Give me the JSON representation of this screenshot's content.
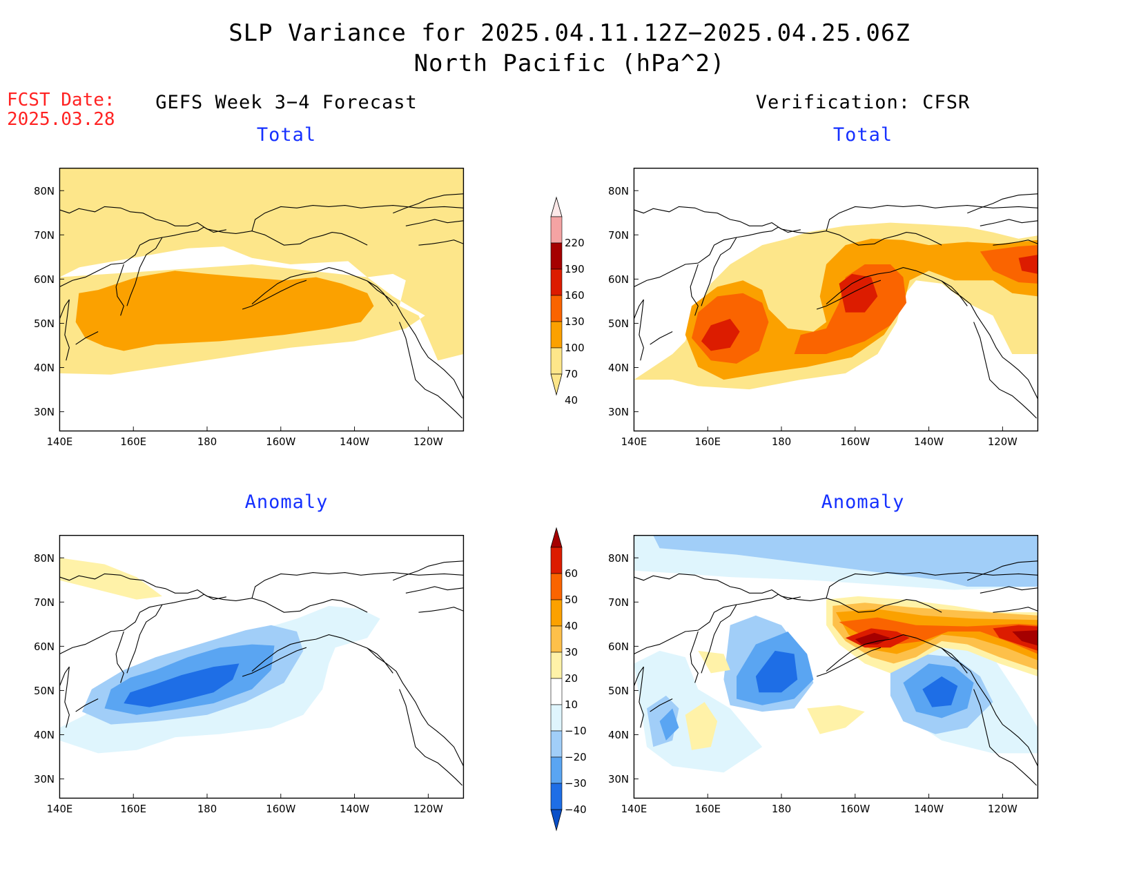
{
  "figure": {
    "title_line1": "SLP Variance for 2025.04.11.12Z−2025.04.25.06Z",
    "title_line2": "North Pacific (hPa^2)",
    "fcst_line1": "FCST Date:",
    "fcst_line2": "2025.03.28",
    "left_column_title": "GEFS Week 3−4 Forecast",
    "right_column_title": "Verification: CFSR"
  },
  "panels": {
    "top_left_title": "Total",
    "top_right_title": "Total",
    "bottom_left_title": "Anomaly",
    "bottom_right_title": "Anomaly"
  },
  "axes": {
    "lon_ticks": [
      "140E",
      "160E",
      "180",
      "160W",
      "140W",
      "120W"
    ],
    "lat_ticks": [
      "80N",
      "70N",
      "60N",
      "50N",
      "40N",
      "30N"
    ]
  },
  "colorbar_total": {
    "labels": [
      "220",
      "190",
      "160",
      "130",
      "100",
      "70",
      "40"
    ],
    "colors": [
      "#fde8e8",
      "#f4a3a3",
      "#a50000",
      "#dc1c00",
      "#fa6400",
      "#fba100",
      "#fde68a"
    ]
  },
  "colorbar_anomaly": {
    "labels": [
      "60",
      "50",
      "40",
      "30",
      "20",
      "10",
      "−10",
      "−20",
      "−30",
      "−40"
    ],
    "colors": [
      "#a50000",
      "#dc1c00",
      "#fa6400",
      "#fba100",
      "#fdc04a",
      "#fff2a8",
      "#ffffff",
      "#dff5fd",
      "#a1cef8",
      "#5aa5f2",
      "#1e6ee6",
      "#0a50c8"
    ]
  },
  "chart_data": [
    {
      "type": "heatmap",
      "title": "Total",
      "subtitle": "GEFS Week 3−4 Forecast",
      "lon_range": [
        "140E",
        "110W"
      ],
      "lat_range": [
        "25N",
        "85N"
      ],
      "levels": [
        40,
        70,
        100,
        130,
        160,
        190,
        220
      ],
      "regions": [
        {
          "range": "40-70",
          "area": "most of North Pacific and Arctic basin"
        },
        {
          "range": "70-100",
          "area": "storm track 40N-57N, 145E-145W"
        }
      ]
    },
    {
      "type": "heatmap",
      "title": "Total",
      "subtitle": "Verification: CFSR",
      "lon_range": [
        "140E",
        "110W"
      ],
      "lat_range": [
        "25N",
        "85N"
      ],
      "levels": [
        40,
        70,
        100,
        130,
        160,
        190,
        220
      ],
      "regions": [
        {
          "range": "130-160",
          "area": "near 158E 45N"
        },
        {
          "range": "100-130",
          "area": "near 160W 55N and 115W 62N"
        }
      ]
    },
    {
      "type": "heatmap",
      "title": "Anomaly",
      "subtitle": "GEFS Week 3−4 Forecast",
      "lon_range": [
        "140E",
        "110W"
      ],
      "lat_range": [
        "25N",
        "85N"
      ],
      "levels": [
        -40,
        -30,
        -20,
        -10,
        10,
        20,
        30,
        40,
        50,
        60
      ],
      "regions": [
        {
          "range": "-40 to -30",
          "area": "near 165E-175E 45N-50N"
        },
        {
          "range": "10-20",
          "area": "Arctic coast near 145E-160E 72N"
        }
      ]
    },
    {
      "type": "heatmap",
      "title": "Anomaly",
      "subtitle": "Verification: CFSR",
      "lon_range": [
        "140E",
        "110W"
      ],
      "lat_range": [
        "25N",
        "85N"
      ],
      "levels": [
        -40,
        -30,
        -20,
        -10,
        10,
        20,
        30,
        40,
        50,
        60
      ],
      "regions": [
        {
          "range": "-40 to -30",
          "area": "near 178E 52N and 135W 48N"
        },
        {
          "range": "50-60",
          "area": "near 160W 57N and 115W 62N"
        }
      ]
    }
  ]
}
